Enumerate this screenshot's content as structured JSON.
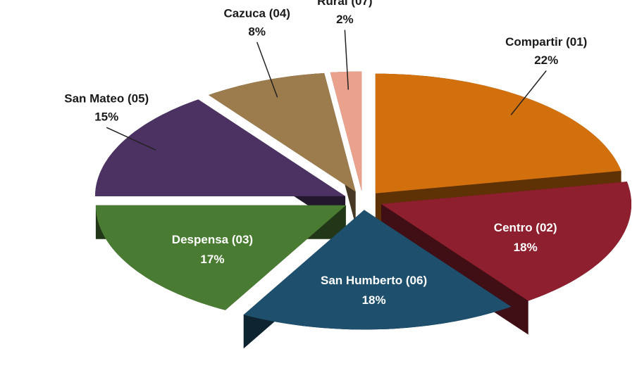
{
  "chart_data": {
    "type": "pie",
    "categories": [
      "Compartir (01)",
      "Centro (02)",
      "San Humberto (06)",
      "Despensa (03)",
      "San Mateo (05)",
      "Cazuca (04)",
      "Rural (07)"
    ],
    "values": [
      22,
      18,
      18,
      17,
      15,
      8,
      2
    ],
    "value_labels": [
      "22%",
      "18%",
      "18%",
      "17%",
      "15%",
      "8%",
      "2%"
    ],
    "colors": [
      "#d2700e",
      "#8e1f2e",
      "#1e4f6d",
      "#4a7b33",
      "#4b3262",
      "#9c7c4c",
      "#eba28c"
    ]
  }
}
